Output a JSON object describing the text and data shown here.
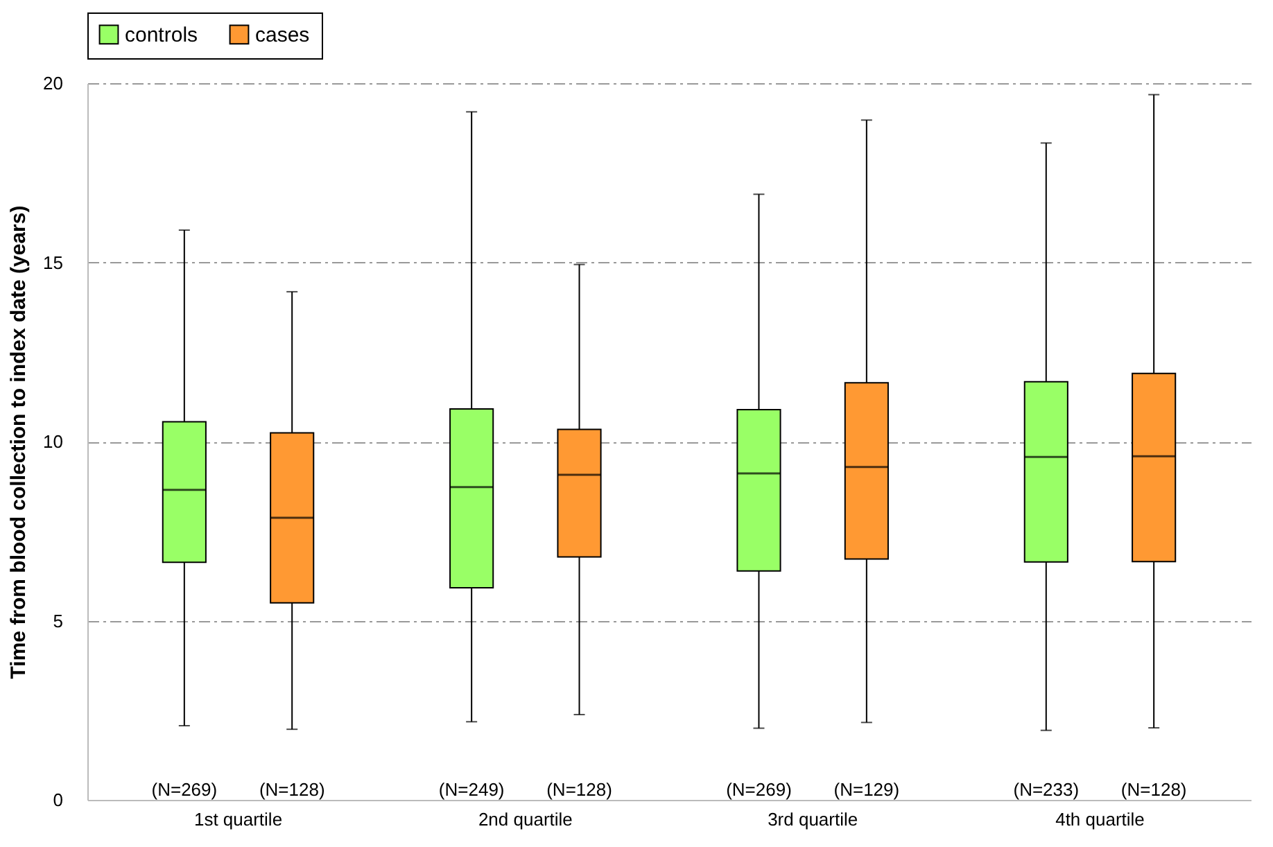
{
  "chart_data": {
    "type": "box",
    "ylabel": "Time from blood collection to index date (years)",
    "categories": [
      "1st quartile",
      "2nd quartile",
      "3rd quartile",
      "4th quartile"
    ],
    "series": [
      {
        "name": "controls",
        "color": "#99ff66",
        "boxes": [
          {
            "low": 2.07,
            "q1": 6.63,
            "median": 8.65,
            "q3": 10.55,
            "high": 15.9
          },
          {
            "low": 2.18,
            "q1": 5.92,
            "median": 8.73,
            "q3": 10.91,
            "high": 19.2
          },
          {
            "low": 2.0,
            "q1": 6.39,
            "median": 9.11,
            "q3": 10.89,
            "high": 16.9
          },
          {
            "low": 1.94,
            "q1": 6.64,
            "median": 9.57,
            "q3": 11.67,
            "high": 18.33
          }
        ]
      },
      {
        "name": "cases",
        "color": "#ff9933",
        "boxes": [
          {
            "low": 1.97,
            "q1": 5.5,
            "median": 7.87,
            "q3": 10.24,
            "high": 14.18
          },
          {
            "low": 2.38,
            "q1": 6.78,
            "median": 9.07,
            "q3": 10.34,
            "high": 14.94
          },
          {
            "low": 2.16,
            "q1": 6.72,
            "median": 9.29,
            "q3": 11.64,
            "high": 18.97
          },
          {
            "low": 2.01,
            "q1": 6.65,
            "median": 9.59,
            "q3": 11.9,
            "high": 19.68
          }
        ]
      }
    ],
    "annotations": [
      "(N=269)",
      "(N=128)",
      "(N=249)",
      "(N=128)",
      "(N=269)",
      "(N=129)",
      "(N=233)",
      "(N=128)"
    ],
    "ylim": [
      0,
      20
    ],
    "yticks": [
      0,
      5,
      10,
      15,
      20
    ],
    "grid": "y",
    "legend": "top"
  }
}
